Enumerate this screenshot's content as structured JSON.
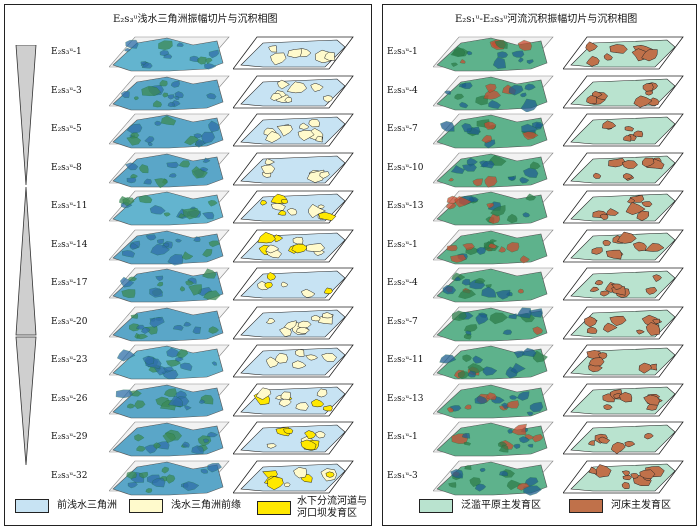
{
  "left_panel": {
    "title": "E₂s₃ᵘ浅水三角洲振幅切片与沉积相图",
    "rows": [
      "E₂s₃ᵘ-1",
      "E₂s₃ᵘ-3",
      "E₂s₃ᵘ-5",
      "E₂s₃ᵘ-8",
      "E₂s₃ᵘ-11",
      "E₂s₃ᵘ-14",
      "E₂s₃ᵘ-17",
      "E₂s₃ᵘ-20",
      "E₂s₃ᵘ-23",
      "E₂s₃ᵘ-26",
      "E₂s₃ᵘ-29",
      "E₂s₃ᵘ-32"
    ],
    "legend": [
      {
        "label": "前浅水三角洲",
        "color": "#c7e3f3"
      },
      {
        "label": "浅水三角洲前缘",
        "color": "#fffacc"
      },
      {
        "label_line1": "水下分流河道与",
        "label_line2": "河口坝发育区",
        "color": "#ffe800"
      }
    ]
  },
  "right_panel": {
    "title": "E₂s₁ᵘ-E₂s₃ᵘ河流沉积振幅切片与沉积相图",
    "rows": [
      "E₂s₃ᵘ-1",
      "E₂s₃ᵘ-4",
      "E₂s₃ᵘ-7",
      "E₂s₃ᵘ-10",
      "E₂s₃ᵘ-13",
      "E₂s₂ᵘ-1",
      "E₂s₂ᵘ-4",
      "E₂s₂ᵘ-7",
      "E₂s₂ᵘ-11",
      "E₂s₂ᵘ-13",
      "E₂s₁ᵘ-1",
      "E₂s₁ᵘ-3"
    ],
    "legend": [
      {
        "label": "泛滥平原主发育区",
        "color": "#b9e3cf"
      },
      {
        "label": "河床主发育区",
        "color": "#c0714a"
      }
    ]
  },
  "colors": {
    "seismic_blue": "#5aa6c8",
    "seismic_green": "#4f9e6a",
    "prodelta": "#c7e3f3",
    "front": "#fffacc",
    "channel": "#ffe800",
    "floodplain": "#b9e3cf",
    "riverbed": "#c0714a"
  }
}
